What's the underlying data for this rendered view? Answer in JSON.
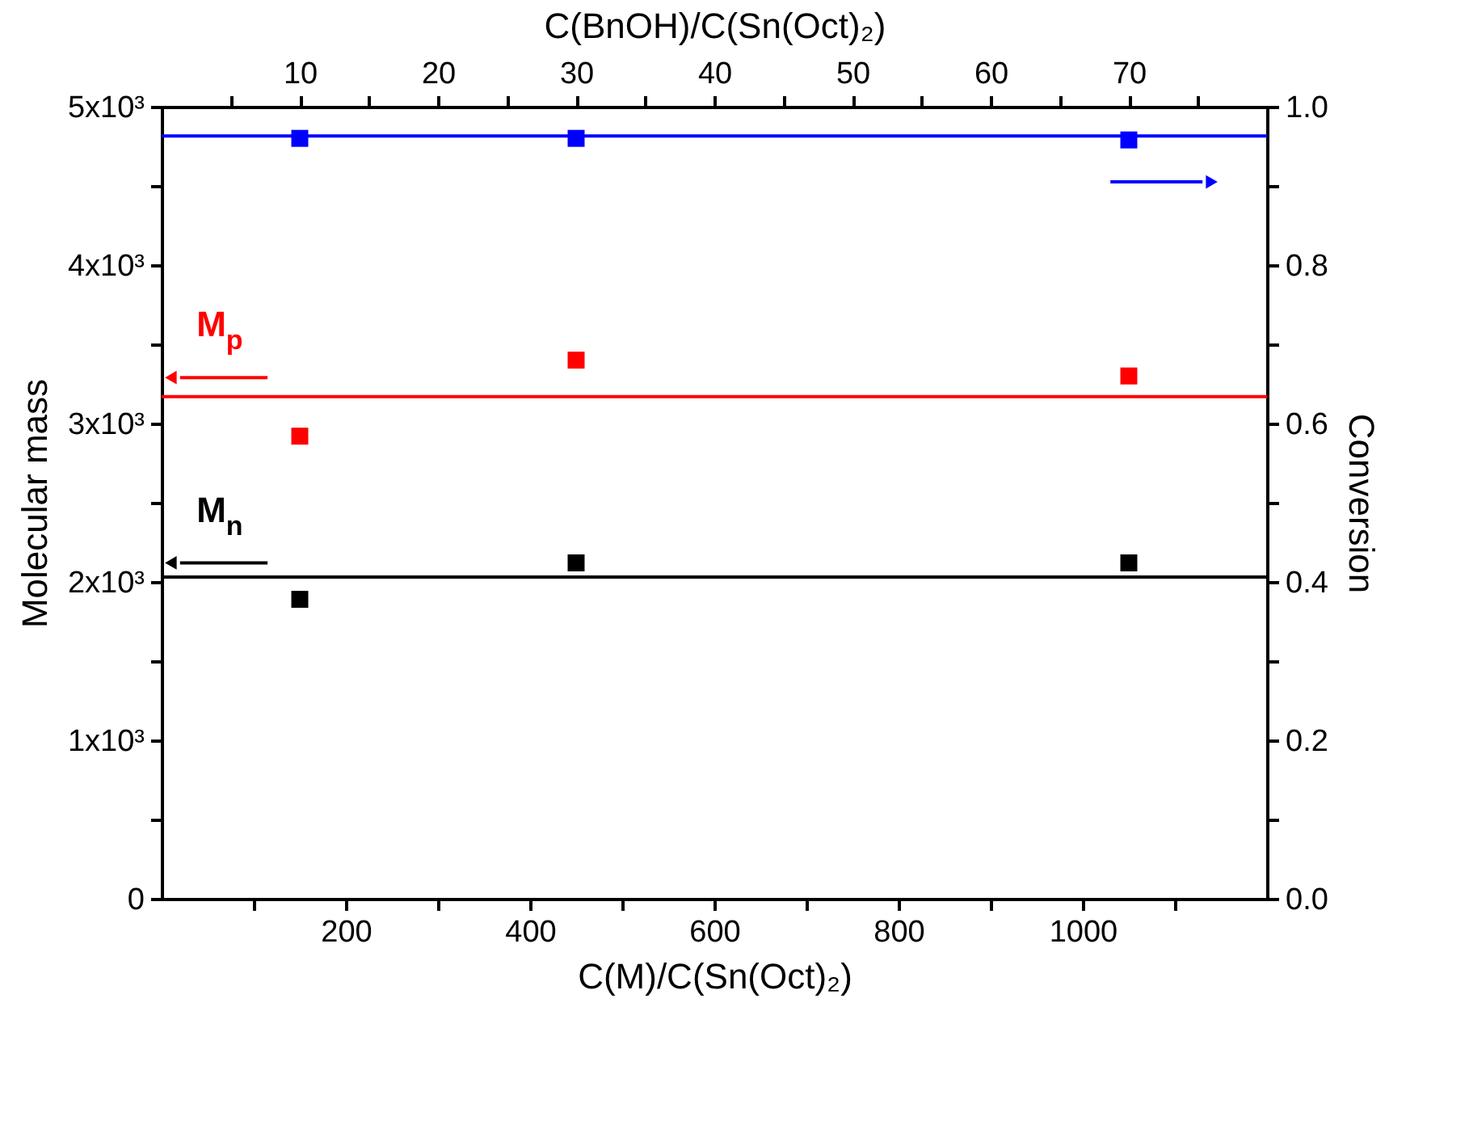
{
  "chart_data": {
    "type": "scatter",
    "xlabel": "C(M)/C(Sn(Oct)₂)",
    "ylabel": "Molecular mass",
    "y2label": "Conversion",
    "x2label": "C(BnOH)/C(Sn(Oct)₂)",
    "x": [
      150,
      450,
      1050
    ],
    "series": [
      {
        "color": "#000000",
        "values": [
          1890,
          2120,
          2120
        ]
      },
      {
        "color": "#ff0000",
        "values": [
          2920,
          3400,
          3300
        ]
      },
      {
        "color": "#0000ff",
        "axis": "y2",
        "values": [
          0.96,
          0.96,
          0.958
        ]
      }
    ],
    "ref_lines": [
      {
        "axis": "y",
        "value": 2030,
        "color": "#000000",
        "line_style": "solid"
      },
      {
        "axis": "y",
        "value": 3170,
        "color": "#ff0000",
        "line_style": "solid"
      },
      {
        "axis": "y2",
        "value": 0.963,
        "color": "#0000ff",
        "line_style": "solid"
      }
    ],
    "xlim": [
      0,
      1200
    ],
    "xticks": [
      {
        "value": 100,
        "label": null
      },
      200,
      {
        "value": 300,
        "label": null
      },
      400,
      {
        "value": 500,
        "label": null
      },
      600,
      {
        "value": 700,
        "label": null
      },
      800,
      {
        "value": 900,
        "label": null
      },
      1000,
      {
        "value": 1100,
        "label": null
      }
    ],
    "x2lim": [
      0,
      80
    ],
    "x2ticks": [
      {
        "value": 5,
        "label": null
      },
      10,
      {
        "value": 15,
        "label": null
      },
      20,
      {
        "value": 25,
        "label": null
      },
      30,
      {
        "value": 35,
        "label": null
      },
      40,
      {
        "value": 45,
        "label": null
      },
      50,
      {
        "value": 55,
        "label": null
      },
      60,
      {
        "value": 65,
        "label": null
      },
      70,
      {
        "value": 75,
        "label": null
      }
    ],
    "ylim": [
      0,
      5000
    ],
    "yticks": [
      0,
      {
        "value": 500,
        "label": null
      },
      {
        "value": 1000,
        "label": "1x10³"
      },
      {
        "value": 1500,
        "label": null
      },
      {
        "value": 2000,
        "label": "2x10³"
      },
      {
        "value": 2500,
        "label": null
      },
      {
        "value": 3000,
        "label": "3x10³"
      },
      {
        "value": 3500,
        "label": null
      },
      {
        "value": 4000,
        "label": "4x10³"
      },
      {
        "value": 4500,
        "label": null
      },
      {
        "value": 5000,
        "label": "5x10³"
      }
    ],
    "y2lim": [
      0,
      1
    ],
    "y2ticks": [
      {
        "value": 0,
        "label": "0.0"
      },
      {
        "value": 0.1,
        "label": null
      },
      0.2,
      {
        "value": 0.3,
        "label": null
      },
      0.4,
      {
        "value": 0.5,
        "label": null
      },
      0.6,
      {
        "value": 0.7,
        "label": null
      },
      0.8,
      {
        "value": 0.9,
        "label": null
      },
      {
        "value": 1,
        "label": "1.0"
      }
    ],
    "annotations": [
      "M$_{p}$",
      "M$_{n}$"
    ],
    "marker": "square",
    "grid": false
  }
}
